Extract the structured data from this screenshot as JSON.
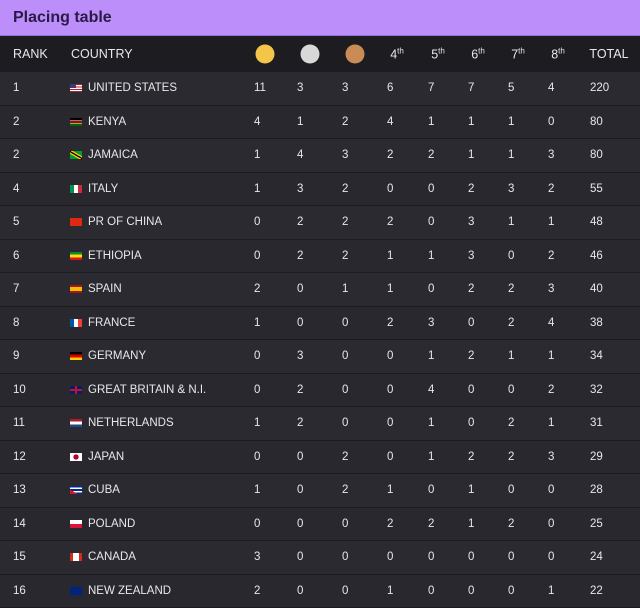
{
  "title": "Placing table",
  "headers": {
    "rank": "RANK",
    "country": "COUNTRY",
    "gold": "gold-medal-icon",
    "silver": "silver-medal-icon",
    "bronze": "bronze-medal-icon",
    "p4": "4",
    "p5": "5",
    "p6": "6",
    "p7": "7",
    "p8": "8",
    "suffix": "th",
    "total": "TOTAL"
  },
  "medal_colors": {
    "gold": "#f3c64a",
    "silver": "#d8d8d8",
    "bronze": "#c98c57"
  },
  "rows": [
    {
      "rank": "1",
      "country": "UNITED STATES",
      "flag": "linear-gradient(#3c3b6e 0 50%,transparent 50%) 0 0/50% 100% no-repeat,repeating-linear-gradient(#b22234 0 1.2px,#fff 1.2px 2.4px)",
      "vals": [
        11,
        3,
        3,
        6,
        7,
        7,
        5,
        4
      ],
      "total": 220
    },
    {
      "rank": "2",
      "country": "KENYA",
      "flag": "linear-gradient(#000 0 33%,#fff 33% 38%,#b00 38% 62%,#fff 62% 67%,#060 67%)",
      "vals": [
        4,
        1,
        2,
        4,
        1,
        1,
        1,
        0
      ],
      "total": 80
    },
    {
      "rank": "2",
      "country": "JAMAICA",
      "flag": "linear-gradient(30deg,#009b3a 35%,#fed100 35% 45%,#000 45% 55%,#fed100 55% 65%,#009b3a 65%)",
      "vals": [
        1,
        4,
        3,
        2,
        2,
        1,
        1,
        3
      ],
      "total": 80
    },
    {
      "rank": "4",
      "country": "ITALY",
      "flag": "linear-gradient(90deg,#009246 33%,#fff 33% 66%,#ce2b37 66%)",
      "vals": [
        1,
        3,
        2,
        0,
        0,
        2,
        3,
        2
      ],
      "total": 55
    },
    {
      "rank": "5",
      "country": "PR OF CHINA",
      "flag": "#de2910",
      "vals": [
        0,
        2,
        2,
        2,
        0,
        3,
        1,
        1
      ],
      "total": 48
    },
    {
      "rank": "6",
      "country": "ETHIOPIA",
      "flag": "linear-gradient(#078930 33%,#fcdd09 33% 66%,#da121a 66%)",
      "vals": [
        0,
        2,
        2,
        1,
        1,
        3,
        0,
        2
      ],
      "total": 46
    },
    {
      "rank": "7",
      "country": "SPAIN",
      "flag": "linear-gradient(#aa151b 25%,#f1bf00 25% 75%,#aa151b 75%)",
      "vals": [
        2,
        0,
        1,
        1,
        0,
        2,
        2,
        3
      ],
      "total": 40
    },
    {
      "rank": "8",
      "country": "FRANCE",
      "flag": "linear-gradient(90deg,#0055a4 33%,#fff 33% 66%,#ef4135 66%)",
      "vals": [
        1,
        0,
        0,
        2,
        3,
        0,
        2,
        4
      ],
      "total": 38
    },
    {
      "rank": "9",
      "country": "GERMANY",
      "flag": "linear-gradient(#000 33%,#d00 33% 66%,#ffce00 66%)",
      "vals": [
        0,
        3,
        0,
        0,
        1,
        2,
        1,
        1
      ],
      "total": 34
    },
    {
      "rank": "10",
      "country": "GREAT BRITAIN & N.I.",
      "flag": "linear-gradient(90deg,transparent 42%,#c8102e 42% 58%,transparent 58%),linear-gradient(transparent 40%,#c8102e 40% 60%,transparent 60%),#012169",
      "vals": [
        0,
        2,
        0,
        0,
        4,
        0,
        0,
        2
      ],
      "total": 32
    },
    {
      "rank": "11",
      "country": "NETHERLANDS",
      "flag": "linear-gradient(#ae1c28 33%,#fff 33% 66%,#21468b 66%)",
      "vals": [
        1,
        2,
        0,
        0,
        1,
        0,
        2,
        1
      ],
      "total": 31
    },
    {
      "rank": "12",
      "country": "JAPAN",
      "flag": "radial-gradient(circle,#bc002d 0 2.5px,#fff 2.8px)",
      "vals": [
        0,
        0,
        2,
        0,
        1,
        2,
        2,
        3
      ],
      "total": 29
    },
    {
      "rank": "13",
      "country": "CUBA",
      "flag": "linear-gradient(30deg,#cf142b 30%,transparent 30%),repeating-linear-gradient(#002a8f 0 1.6px,#fff 1.6px 3.2px)",
      "vals": [
        1,
        0,
        2,
        1,
        0,
        1,
        0,
        0
      ],
      "total": 28
    },
    {
      "rank": "14",
      "country": "POLAND",
      "flag": "linear-gradient(#fff 50%,#dc143c 50%)",
      "vals": [
        0,
        0,
        0,
        2,
        2,
        1,
        2,
        0
      ],
      "total": 25
    },
    {
      "rank": "15",
      "country": "CANADA",
      "flag": "linear-gradient(90deg,#d52b1e 25%,#fff 25% 75%,#d52b1e 75%)",
      "vals": [
        3,
        0,
        0,
        0,
        0,
        0,
        0,
        0
      ],
      "total": 24
    },
    {
      "rank": "16",
      "country": "NEW ZEALAND",
      "flag": "#00247d",
      "vals": [
        2,
        0,
        0,
        1,
        0,
        0,
        0,
        1
      ],
      "total": 22
    }
  ]
}
